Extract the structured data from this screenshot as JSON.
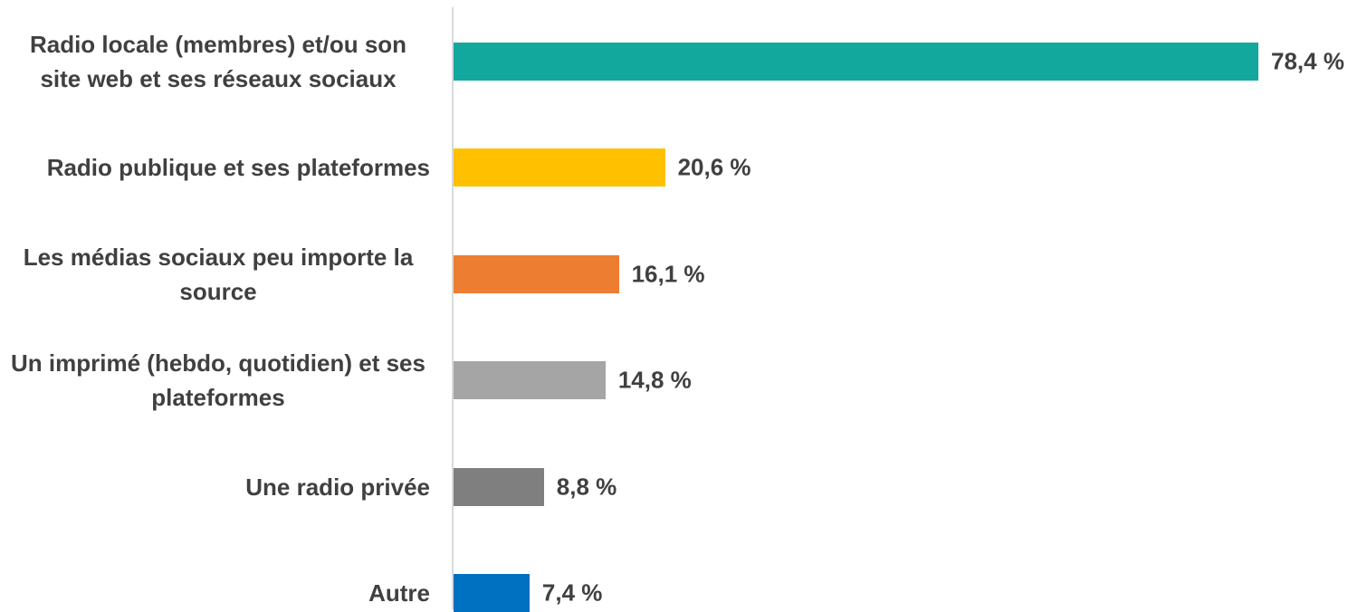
{
  "chart_data": {
    "type": "bar",
    "orientation": "horizontal",
    "categories": [
      "Radio locale (membres) et/ou son site web et ses réseaux sociaux",
      "Radio publique et ses plateformes",
      "Les médias sociaux peu importe la source",
      "Un imprimé (hebdo, quotidien) et ses plateformes",
      "Une radio privée",
      "Autre"
    ],
    "values": [
      78.4,
      20.6,
      16.1,
      14.8,
      8.8,
      7.4
    ],
    "value_labels": [
      "78,4 %",
      "20,6 %",
      "16,1 %",
      "14,8 %",
      "8,8 %",
      "7,4 %"
    ],
    "colors": [
      "#13a89e",
      "#ffc000",
      "#ed7d31",
      "#a5a5a5",
      "#7f7f7f",
      "#0070c0"
    ]
  }
}
